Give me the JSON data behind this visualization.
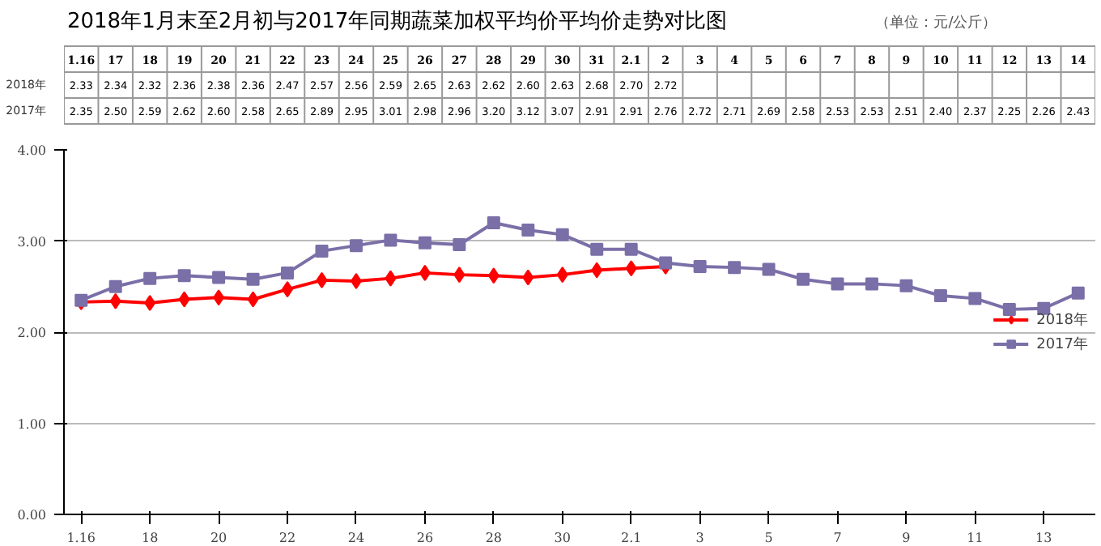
{
  "chart_data": {
    "type": "line",
    "title": "2018年1月末至2月初与2017年同期蔬菜加权平均价平均价走势对比图",
    "subtitle": "（单位：元/公斤）",
    "categories": [
      "1.16",
      "17",
      "18",
      "19",
      "20",
      "21",
      "22",
      "23",
      "24",
      "25",
      "26",
      "27",
      "28",
      "29",
      "30",
      "31",
      "2.1",
      "2",
      "3",
      "4",
      "5",
      "6",
      "7",
      "8",
      "9",
      "10",
      "11",
      "12",
      "13",
      "14"
    ],
    "series": [
      {
        "name": "2018年",
        "color": "#ff0000",
        "marker": "diamond",
        "values": [
          2.33,
          2.34,
          2.32,
          2.36,
          2.38,
          2.36,
          2.47,
          2.57,
          2.56,
          2.59,
          2.65,
          2.63,
          2.62,
          2.6,
          2.63,
          2.68,
          2.7,
          2.72,
          null,
          null,
          null,
          null,
          null,
          null,
          null,
          null,
          null,
          null,
          null,
          null
        ],
        "value_labels": [
          "2.33",
          "2.34",
          "2.32",
          "2.36",
          "2.38",
          "2.36",
          "2.47",
          "2.57",
          "2.56",
          "2.59",
          "2.65",
          "2.63",
          "2.62",
          "2.60",
          "2.63",
          "2.68",
          "2.70",
          "2.72",
          null,
          null,
          null,
          null,
          null,
          null,
          null,
          null,
          null,
          null,
          null,
          null
        ]
      },
      {
        "name": "2017年",
        "color": "#7b6fa8",
        "marker": "square",
        "values": [
          2.35,
          2.5,
          2.59,
          2.62,
          2.6,
          2.58,
          2.65,
          2.89,
          2.95,
          3.01,
          2.98,
          2.96,
          3.2,
          3.12,
          3.07,
          2.91,
          2.91,
          2.76,
          2.72,
          2.71,
          2.69,
          2.58,
          2.53,
          2.53,
          2.51,
          2.4,
          2.37,
          2.25,
          2.26,
          2.43
        ],
        "value_labels": [
          "2.35",
          "2.50",
          "2.59",
          "2.62",
          "2.60",
          "2.58",
          "2.65",
          "2.89",
          "2.95",
          "3.01",
          "2.98",
          "2.96",
          "3.20",
          "3.12",
          "3.07",
          "2.91",
          "2.91",
          "2.76",
          "2.72",
          "2.71",
          "2.69",
          "2.58",
          "2.53",
          "2.53",
          "2.51",
          "2.40",
          "2.37",
          "2.25",
          "2.26",
          "2.43"
        ]
      }
    ],
    "ylim": [
      0,
      4
    ],
    "yticks": [
      {
        "value": 0,
        "label": "0.00"
      },
      {
        "value": 1,
        "label": "1.00"
      },
      {
        "value": 2,
        "label": "2.00"
      },
      {
        "value": 3,
        "label": "3.00"
      },
      {
        "value": 4,
        "label": "4.00"
      }
    ],
    "grid": "y",
    "legend": "right"
  }
}
